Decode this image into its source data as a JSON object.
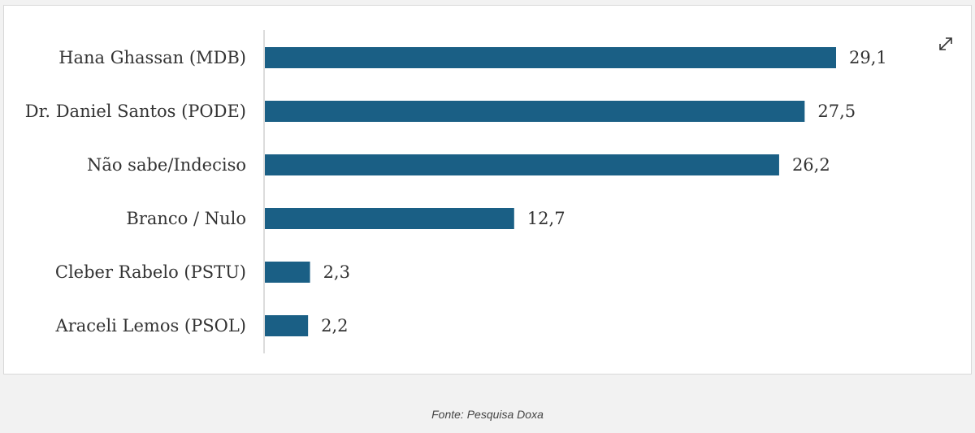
{
  "chart_data": {
    "type": "bar",
    "orientation": "horizontal",
    "categories": [
      "Hana Ghassan (MDB)",
      "Dr. Daniel Santos (PODE)",
      "Não sabe/Indeciso",
      "Branco / Nulo",
      "Cleber Rabelo (PSTU)",
      "Araceli Lemos (PSOL)"
    ],
    "values": [
      29.1,
      27.5,
      26.2,
      12.7,
      2.3,
      2.2
    ],
    "value_labels": [
      "29,1",
      "27,5",
      "26,2",
      "12,7",
      "2,3",
      "2,2"
    ],
    "xlim": [
      0,
      29.1
    ],
    "grid": false,
    "legend": "none",
    "bar_color": "#1a5f85",
    "title": "",
    "xlabel": "",
    "ylabel": ""
  },
  "toolbar": {
    "expand_icon": "expand-icon"
  },
  "caption": {
    "source": "Fonte: Pesquisa Doxa"
  }
}
